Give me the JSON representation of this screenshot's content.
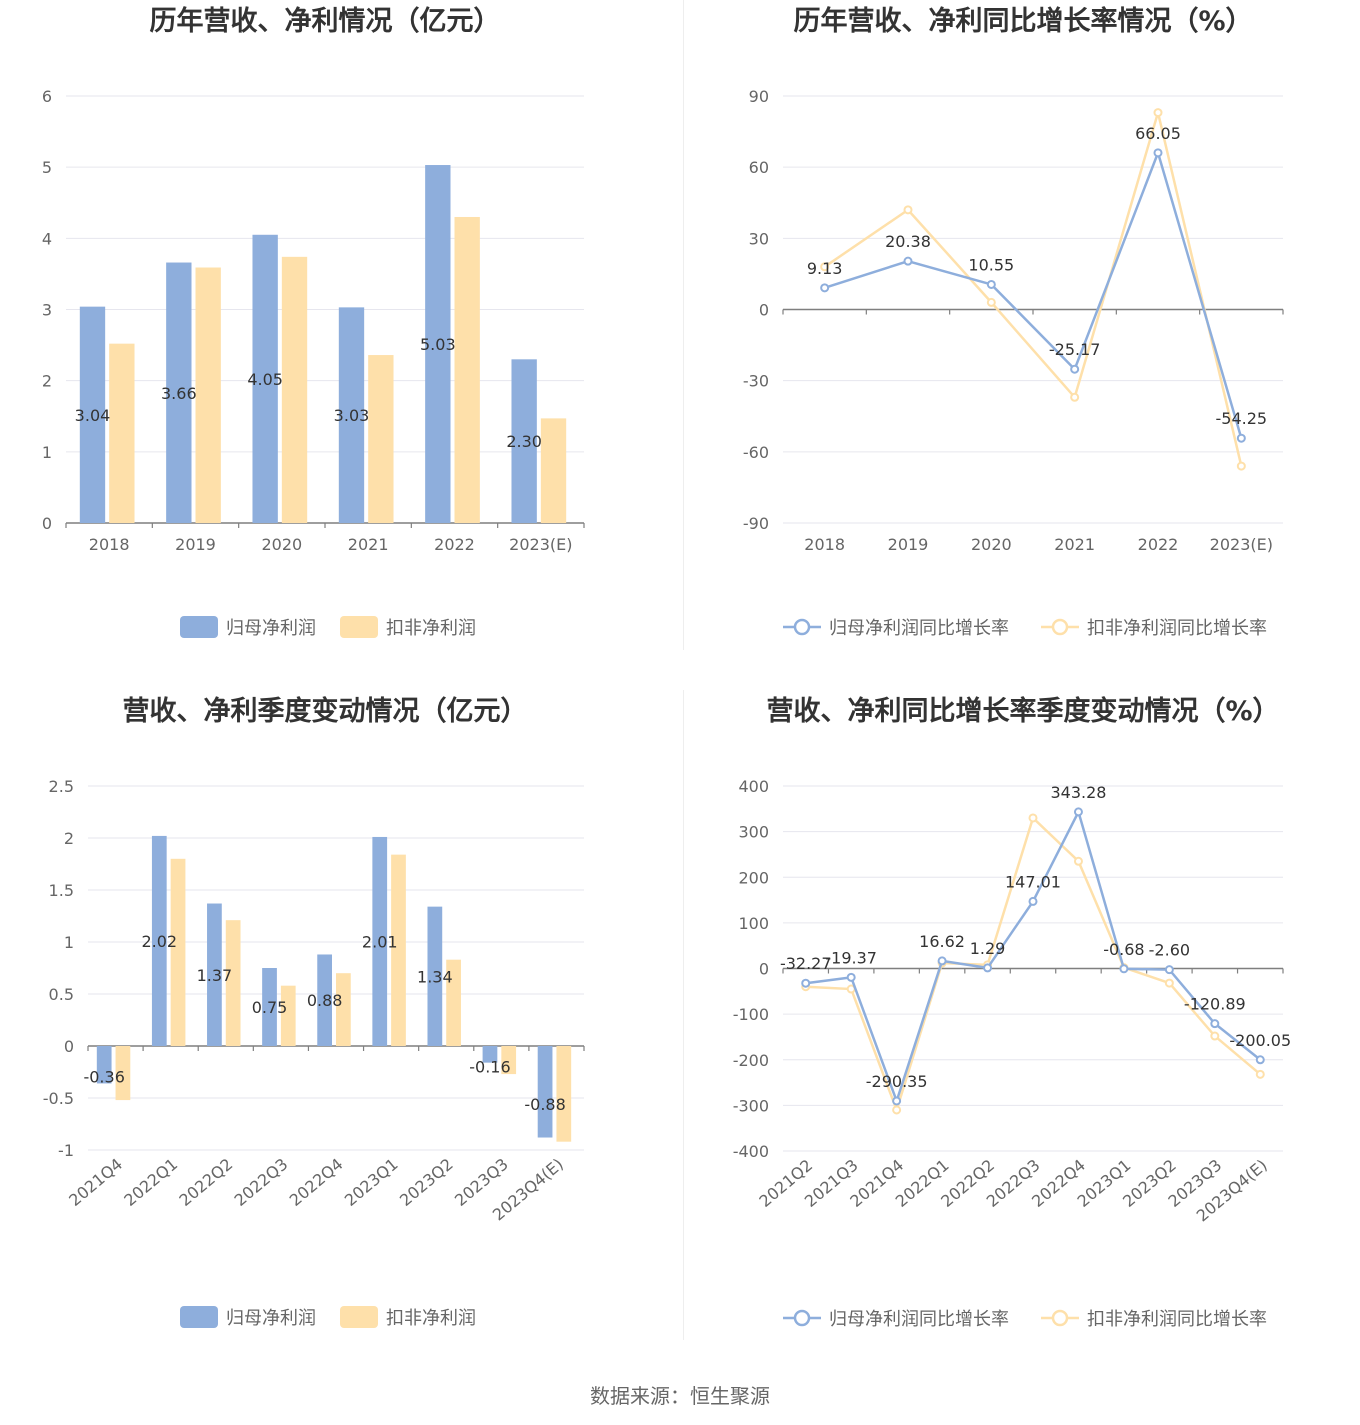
{
  "colors": {
    "primary": "#8eaedc",
    "secondary": "#fee0aa",
    "grid": "#e6e6ee",
    "axis": "#7f7f7f"
  },
  "footer": "数据来源：恒生聚源",
  "chart_data": [
    {
      "id": "annual-profit",
      "type": "bar",
      "title": "历年营收、净利情况（亿元）",
      "categories": [
        "2018",
        "2019",
        "2020",
        "2021",
        "2022",
        "2023(E)"
      ],
      "yticks": [
        "0",
        "1",
        "2",
        "3",
        "4",
        "5",
        "6"
      ],
      "ylim": [
        0,
        6
      ],
      "series": [
        {
          "name": "归母净利润",
          "values": [
            3.04,
            3.66,
            4.05,
            3.03,
            5.03,
            2.3
          ],
          "labels": [
            "3.04",
            "3.66",
            "4.05",
            "3.03",
            "5.03",
            "2.30"
          ]
        },
        {
          "name": "扣非净利润",
          "values": [
            2.52,
            3.59,
            3.74,
            2.36,
            4.3,
            1.47
          ]
        }
      ],
      "legend": "bottom"
    },
    {
      "id": "annual-growth",
      "type": "line",
      "title": "历年营收、净利同比增长率情况（%）",
      "categories": [
        "2018",
        "2019",
        "2020",
        "2021",
        "2022",
        "2023(E)"
      ],
      "yticks": [
        "-90",
        "-60",
        "-30",
        "0",
        "30",
        "60",
        "90"
      ],
      "ylim": [
        -90,
        90
      ],
      "series": [
        {
          "name": "归母净利润同比增长率",
          "values": [
            9.13,
            20.38,
            10.55,
            -25.17,
            66.05,
            -54.25
          ],
          "labels": [
            "9.13",
            "20.38",
            "10.55",
            "-25.17",
            "66.05",
            "-54.25"
          ]
        },
        {
          "name": "扣非净利润同比增长率",
          "values": [
            18,
            42,
            3,
            -37,
            83,
            -66
          ]
        }
      ],
      "legend": "bottom"
    },
    {
      "id": "quarterly-profit",
      "type": "bar",
      "title": "营收、净利季度变动情况（亿元）",
      "categories": [
        "2021Q4",
        "2022Q1",
        "2022Q2",
        "2022Q3",
        "2022Q4",
        "2023Q1",
        "2023Q2",
        "2023Q3",
        "2023Q4(E)"
      ],
      "yticks": [
        "-1",
        "-0.5",
        "0",
        "0.5",
        "1",
        "1.5",
        "2",
        "2.5"
      ],
      "ylim": [
        -1,
        2.5
      ],
      "series": [
        {
          "name": "归母净利润",
          "values": [
            -0.36,
            2.02,
            1.37,
            0.75,
            0.88,
            2.01,
            1.34,
            -0.16,
            -0.88
          ],
          "labels": [
            "-0.36",
            "2.02",
            "1.37",
            "0.75",
            "0.88",
            "2.01",
            "1.34",
            "-0.16",
            "-0.88"
          ]
        },
        {
          "name": "扣非净利润",
          "values": [
            -0.52,
            1.8,
            1.21,
            0.58,
            0.7,
            1.84,
            0.83,
            -0.27,
            -0.92
          ]
        }
      ],
      "legend": "bottom"
    },
    {
      "id": "quarterly-growth",
      "type": "line",
      "title": "营收、净利同比增长率季度变动情况（%）",
      "categories": [
        "2021Q2",
        "2021Q3",
        "2021Q4",
        "2022Q1",
        "2022Q2",
        "2022Q3",
        "2022Q4",
        "2023Q1",
        "2023Q2",
        "2023Q3",
        "2023Q4(E)"
      ],
      "yticks": [
        "-400",
        "-300",
        "-200",
        "-100",
        "0",
        "100",
        "200",
        "300",
        "400"
      ],
      "ylim": [
        -400,
        400
      ],
      "series": [
        {
          "name": "归母净利润同比增长率",
          "values": [
            -32.27,
            -19.37,
            -290.35,
            16.62,
            1.29,
            147.01,
            343.28,
            -0.68,
            -2.6,
            -120.89,
            -200.05
          ],
          "labels": [
            "-32.27",
            "-19.37",
            "-290.35",
            "16.62",
            "1.29",
            "147.01",
            "343.28",
            "-0.68",
            "-2.60",
            "-120.89",
            "-200.05"
          ]
        },
        {
          "name": "扣非净利润同比增长率",
          "values": [
            -40,
            -45,
            -310,
            12,
            8,
            330,
            235,
            2,
            -32,
            -148,
            -232
          ]
        }
      ],
      "legend": "bottom"
    }
  ]
}
